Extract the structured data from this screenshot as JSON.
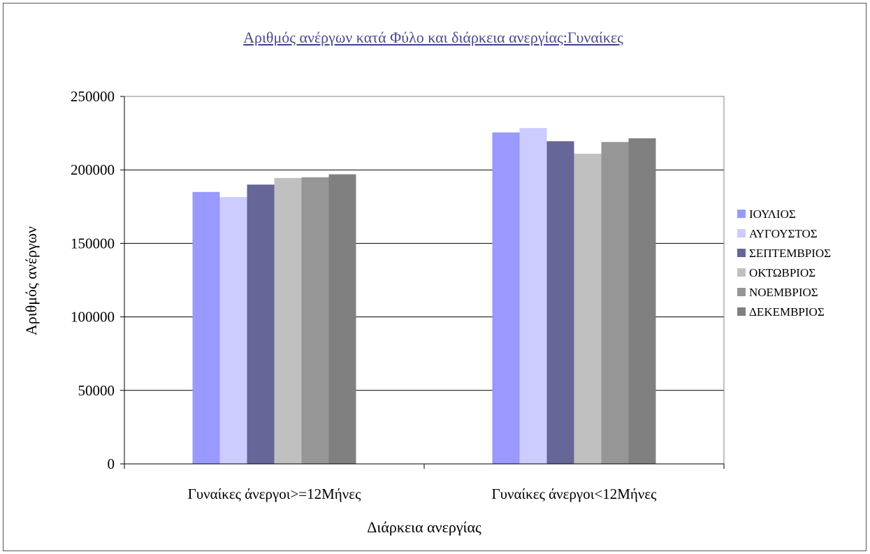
{
  "chart_data": {
    "type": "bar",
    "title": "Αριθμός ανέργων κατά Φύλο και διάρκεια ανεργίας:Γυναίκες",
    "xlabel": "Διάρκεια ανεργίας",
    "ylabel": "Αριθμός ανέργων",
    "ylim": [
      0,
      250000
    ],
    "yticks": [
      0,
      50000,
      100000,
      150000,
      200000,
      250000
    ],
    "grid": true,
    "legend_position": "right",
    "categories": [
      "Γυναίκες άνεργοι>=12Μήνες",
      "Γυναίκες άνεργοι<12Μήνες"
    ],
    "series": [
      {
        "name": "ΙΟΥΛΙΟΣ",
        "color": "#9999ff",
        "values": [
          185000,
          225500
        ]
      },
      {
        "name": "ΑΥΓΟΥΣΤΟΣ",
        "color": "#ccccff",
        "values": [
          181500,
          228500
        ]
      },
      {
        "name": "ΣΕΠΤΕΜΒΡΙΟΣ",
        "color": "#666699",
        "values": [
          190000,
          219500
        ]
      },
      {
        "name": "ΟΚΤΩΒΡΙΟΣ",
        "color": "#c0c0c0",
        "values": [
          194500,
          211000
        ]
      },
      {
        "name": "ΝΟΕΜΒΡΙΟΣ",
        "color": "#969696",
        "values": [
          195000,
          219000
        ]
      },
      {
        "name": "ΔΕΚΕΜΒΡΙΟΣ",
        "color": "#808080",
        "values": [
          197000,
          221500
        ]
      }
    ]
  }
}
